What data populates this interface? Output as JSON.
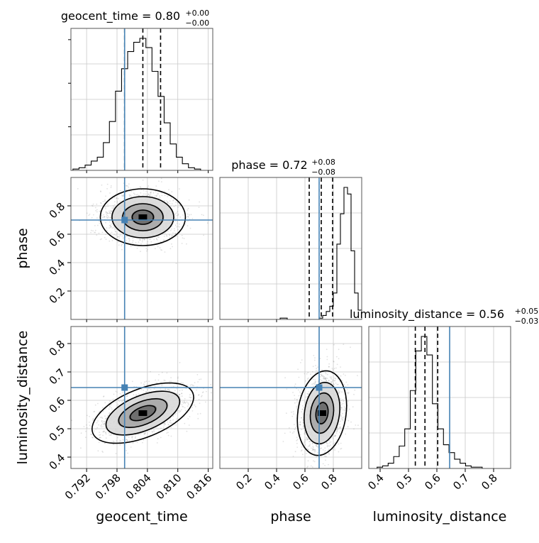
{
  "chart_data": {
    "type": "corner",
    "parameters": [
      "geocent_time",
      "phase",
      "luminosity_distance"
    ],
    "axis_labels": [
      "geocent_time",
      "phase",
      "luminosity_distance"
    ],
    "ylabels": {
      "row1": "phase",
      "row2": "luminosity_distance"
    },
    "titles": [
      {
        "param": "geocent_time",
        "text": "geocent_time = 0.80",
        "sup": "+0.00",
        "sub": "−0.00"
      },
      {
        "param": "phase",
        "text": "phase = 0.72",
        "sup": "+0.08",
        "sub": "−0.08"
      },
      {
        "param": "luminosity_distance",
        "text": "luminosity_distance = 0.56",
        "sup": "+0.05",
        "sub": "−0.03"
      }
    ],
    "ranges": {
      "geocent_time": [
        0.7889,
        0.8169
      ],
      "phase": [
        0.0,
        1.0
      ],
      "luminosity_distance": [
        0.36,
        0.86
      ]
    },
    "ticks": {
      "geocent_time": [
        0.792,
        0.798,
        0.804,
        0.81,
        0.816
      ],
      "phase": [
        0.2,
        0.4,
        0.6,
        0.8
      ],
      "luminosity_distance": [
        0.4,
        0.5,
        0.6,
        0.7,
        0.8
      ]
    },
    "tick_labels": {
      "geocent_time": [
        "0.792",
        "0.798",
        "0.804",
        "0.810",
        "0.816"
      ],
      "phase": [
        "0.2",
        "0.4",
        "0.6",
        "0.8"
      ],
      "luminosity_distance": [
        "0.4",
        "0.5",
        "0.6",
        "0.7",
        "0.8"
      ]
    },
    "truths": {
      "geocent_time": 0.7995,
      "phase": 0.7,
      "luminosity_distance": 0.645
    },
    "quantiles": {
      "geocent_time": [
        0.7995,
        0.8031,
        0.8066
      ],
      "phase": [
        0.63,
        0.715,
        0.795
      ],
      "luminosity_distance": [
        0.524,
        0.558,
        0.603
      ]
    },
    "histograms": {
      "geocent_time": [
        0.0,
        0.01,
        0.02,
        0.04,
        0.07,
        0.1,
        0.21,
        0.37,
        0.6,
        0.77,
        0.9,
        0.97,
        1.0,
        0.93,
        0.75,
        0.56,
        0.36,
        0.2,
        0.1,
        0.05,
        0.02,
        0.01,
        0.0
      ],
      "phase": [
        0.0,
        0.0,
        0.0,
        0.0,
        0.0,
        0.0,
        0.0,
        0.0,
        0.0,
        0.0,
        0.0,
        0.0,
        0.0,
        0.0,
        0.0,
        0.0,
        0.0,
        0.01,
        0.01,
        0.0,
        0.0,
        0.0,
        0.0,
        0.0,
        0.0,
        0.0,
        0.0,
        0.0,
        0.01,
        0.03,
        0.06,
        0.1,
        0.2,
        0.57,
        0.8,
        1.0,
        0.95,
        0.52,
        0.2,
        0.07
      ],
      "luminosity_distance": [
        0.0,
        0.01,
        0.02,
        0.04,
        0.09,
        0.17,
        0.3,
        0.59,
        0.89,
        1.0,
        0.86,
        0.49,
        0.3,
        0.18,
        0.12,
        0.07,
        0.04,
        0.02,
        0.01,
        0.01,
        0.0,
        0.0,
        0.0,
        0.0,
        0.0
      ]
    },
    "hist_step": {
      "geocent_time": 0.0012,
      "phase": 0.025,
      "luminosity_distance": 0.0195
    },
    "posterior_peak": {
      "geocent_time": 0.8031,
      "phase": 0.72,
      "luminosity_distance": 0.555
    },
    "grid": true,
    "colors": {
      "truth": "#4682b4",
      "contour": "#000000",
      "scatter": "#888888",
      "quantile": "#000000"
    }
  }
}
